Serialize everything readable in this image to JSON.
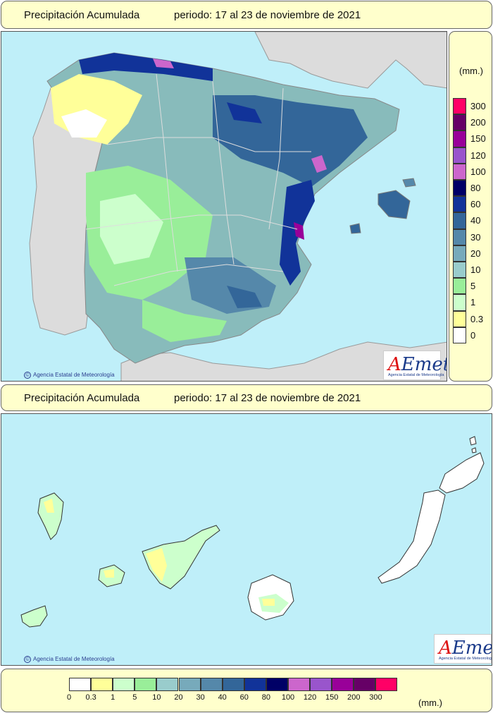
{
  "top_header": {
    "title": "Precipitación Acumulada",
    "period": "periodo: 17 al 23 de noviembre de 2021"
  },
  "bottom_header": {
    "title": "Precipitación Acumulada",
    "period": "periodo: 17 al 23 de noviembre de 2021"
  },
  "credit_top": "Agencia Estatal de Meteorología",
  "credit_bottom": "Agencia Estatal de Meteorología",
  "logo": {
    "wordmark_a": "A",
    "wordmark_rest": "Emet",
    "subtitle": "Agencia Estatal de Meteorología"
  },
  "legend": {
    "unit": "(mm.)",
    "levels": [
      {
        "label": "0",
        "color": "#ffffff"
      },
      {
        "label": "0.3",
        "color": "#ffff99"
      },
      {
        "label": "1",
        "color": "#ccffcc"
      },
      {
        "label": "5",
        "color": "#99ee99"
      },
      {
        "label": "10",
        "color": "#99cccc"
      },
      {
        "label": "20",
        "color": "#77aabb"
      },
      {
        "label": "30",
        "color": "#5588aa"
      },
      {
        "label": "40",
        "color": "#336699"
      },
      {
        "label": "60",
        "color": "#113399"
      },
      {
        "label": "80",
        "color": "#000066"
      },
      {
        "label": "100",
        "color": "#cc66cc"
      },
      {
        "label": "120",
        "color": "#9955cc"
      },
      {
        "label": "150",
        "color": "#990099"
      },
      {
        "label": "200",
        "color": "#660066"
      },
      {
        "label": "300",
        "color": "#ff0066"
      }
    ]
  }
}
